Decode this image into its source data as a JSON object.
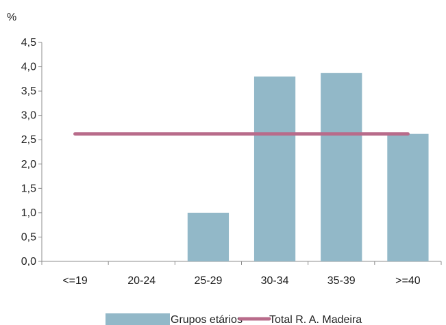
{
  "chart_data": {
    "type": "bar",
    "ylabel": "%",
    "categories": [
      "<=19",
      "20-24",
      "25-29",
      "30-34",
      "35-39",
      ">=40"
    ],
    "series": [
      {
        "name": "Grupos etários",
        "type": "bar",
        "values": [
          0,
          0,
          1.0,
          3.8,
          3.87,
          2.62
        ],
        "color": "#92B8C8"
      },
      {
        "name": "Total R. A. Madeira",
        "type": "line",
        "values": [
          2.62,
          2.62,
          2.62,
          2.62,
          2.62,
          2.62
        ],
        "color": "#B86B8A"
      }
    ],
    "y_ticks": [
      "0,0",
      "0,5",
      "1,0",
      "1,5",
      "2,0",
      "2,5",
      "3,0",
      "3,5",
      "4,0",
      "4,5"
    ],
    "ylim": [
      0,
      4.5
    ],
    "grid": false,
    "legend_position": "bottom"
  }
}
